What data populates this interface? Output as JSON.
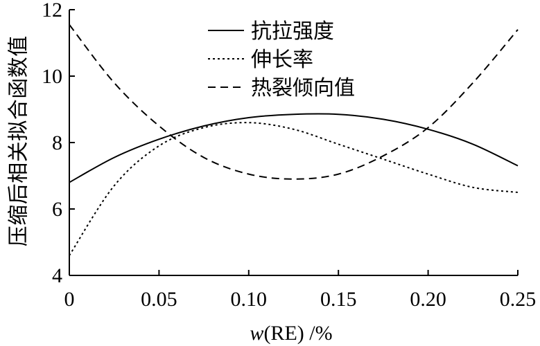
{
  "chart_data": {
    "type": "line",
    "title": "",
    "xlabel": {
      "italic": "w",
      "rest": "(RE) /%"
    },
    "ylabel": "压缩后相关拟合函数值",
    "xlim": [
      0,
      0.25
    ],
    "ylim": [
      4,
      12
    ],
    "x_ticks": [
      "0",
      "0.05",
      "0.10",
      "0.15",
      "0.20",
      "0.25"
    ],
    "y_ticks": [
      "4",
      "6",
      "8",
      "10",
      "12"
    ],
    "grid": false,
    "legend_position": "top-center",
    "series": [
      {
        "name": "抗拉强度",
        "line_style": "solid",
        "color": "#000000",
        "x": [
          0,
          0.025,
          0.05,
          0.075,
          0.1,
          0.125,
          0.15,
          0.175,
          0.2,
          0.225,
          0.25
        ],
        "y": [
          6.8,
          7.55,
          8.1,
          8.5,
          8.75,
          8.85,
          8.85,
          8.7,
          8.4,
          7.95,
          7.3
        ]
      },
      {
        "name": "伸长率",
        "line_style": "dotted",
        "color": "#000000",
        "x": [
          0,
          0.025,
          0.05,
          0.075,
          0.1,
          0.125,
          0.15,
          0.175,
          0.2,
          0.225,
          0.25
        ],
        "y": [
          4.6,
          6.7,
          7.9,
          8.45,
          8.6,
          8.4,
          7.95,
          7.5,
          7.05,
          6.65,
          6.5
        ]
      },
      {
        "name": "热裂倾向值",
        "line_style": "dashed",
        "color": "#000000",
        "x": [
          0,
          0.025,
          0.05,
          0.075,
          0.1,
          0.125,
          0.15,
          0.175,
          0.2,
          0.225,
          0.25
        ],
        "y": [
          11.55,
          9.8,
          8.5,
          7.55,
          7.05,
          6.9,
          7.05,
          7.6,
          8.45,
          9.8,
          11.4
        ]
      }
    ]
  }
}
